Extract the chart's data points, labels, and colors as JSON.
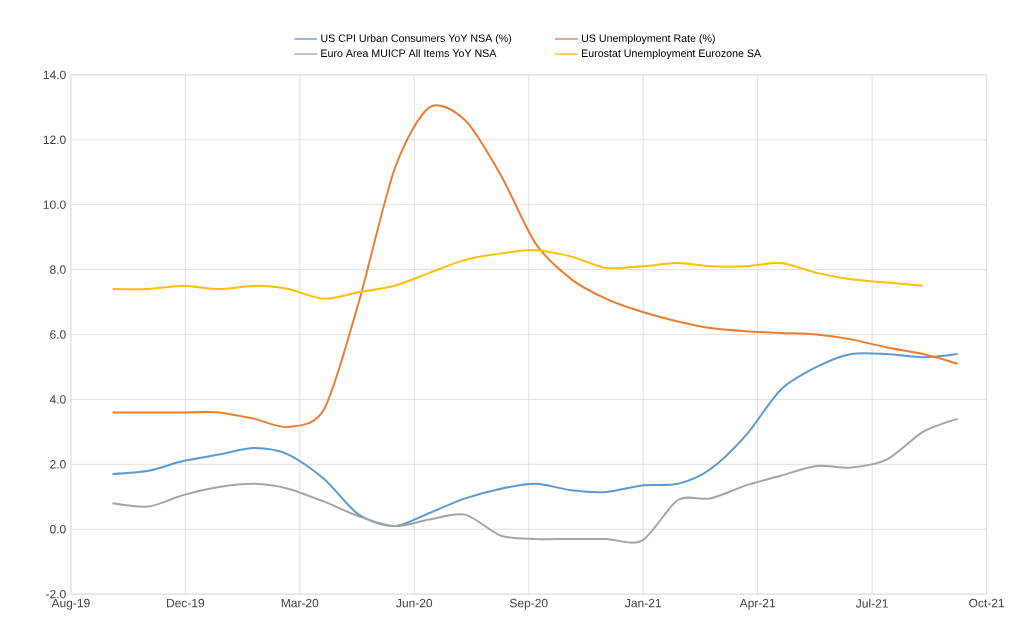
{
  "chart_data": {
    "type": "line",
    "x": [
      "2019-09-30",
      "2019-10-31",
      "2019-11-30",
      "2019-12-31",
      "2020-01-31",
      "2020-02-29",
      "2020-03-31",
      "2020-04-30",
      "2020-05-31",
      "2020-06-30",
      "2020-07-31",
      "2020-08-31",
      "2020-09-30",
      "2020-10-31",
      "2020-11-30",
      "2020-12-31",
      "2021-01-31",
      "2021-02-28",
      "2021-03-31",
      "2021-04-30",
      "2021-05-31",
      "2021-06-30",
      "2021-07-31",
      "2021-08-31",
      "2021-09-30"
    ],
    "series": [
      {
        "name": "US CPI Urban Consumers YoY NSA (%)",
        "color": "#5b9bd5",
        "values": [
          1.7,
          1.8,
          2.1,
          2.3,
          2.5,
          2.3,
          1.55,
          0.45,
          0.1,
          0.5,
          0.95,
          1.25,
          1.4,
          1.2,
          1.15,
          1.35,
          1.4,
          1.85,
          2.9,
          4.3,
          5.0,
          5.4,
          5.4,
          5.3,
          5.4
        ]
      },
      {
        "name": "US Unemployment Rate (%)",
        "color": "#ed7d31",
        "values": [
          3.6,
          3.6,
          3.6,
          3.6,
          3.4,
          3.15,
          3.7,
          7.0,
          11.1,
          13.0,
          12.6,
          10.9,
          8.8,
          7.7,
          7.1,
          6.7,
          6.4,
          6.2,
          6.1,
          6.05,
          6.0,
          5.85,
          5.6,
          5.4,
          5.1
        ]
      },
      {
        "name": "Euro Area MUICP All Items YoY NSA",
        "color": "#a5a5a5",
        "values": [
          0.8,
          0.7,
          1.05,
          1.3,
          1.4,
          1.25,
          0.85,
          0.4,
          0.1,
          0.3,
          0.45,
          -0.2,
          -0.3,
          -0.3,
          -0.3,
          -0.35,
          0.9,
          0.95,
          1.35,
          1.65,
          1.95,
          1.9,
          2.15,
          3.0,
          3.4
        ]
      },
      {
        "name": "Eurostat Unemployment Eurozone SA",
        "color": "#ffc000",
        "values": [
          7.4,
          7.4,
          7.5,
          7.4,
          7.5,
          7.4,
          7.1,
          7.3,
          7.5,
          7.9,
          8.3,
          8.5,
          8.6,
          8.4,
          8.05,
          8.1,
          8.2,
          8.1,
          8.1,
          8.2,
          7.9,
          7.7,
          7.6,
          7.5,
          null
        ]
      }
    ],
    "xlim": [
      "2019-08-25",
      "2021-10-25"
    ],
    "xticks": [
      {
        "value": "2019-08-25",
        "label": "Aug-19"
      },
      {
        "value": "2019-12-02",
        "label": "Dec-19"
      },
      {
        "value": "2020-03-10",
        "label": "Mar-20"
      },
      {
        "value": "2020-06-17",
        "label": "Jun-20"
      },
      {
        "value": "2020-09-24",
        "label": "Sep-20"
      },
      {
        "value": "2021-01-01",
        "label": "Jan-21"
      },
      {
        "value": "2021-04-10",
        "label": "Apr-21"
      },
      {
        "value": "2021-07-18",
        "label": "Jul-21"
      },
      {
        "value": "2021-10-25",
        "label": "Oct-21"
      }
    ],
    "ylim": [
      -2,
      14
    ],
    "yticks": [
      {
        "value": -2,
        "label": "-2.0"
      },
      {
        "value": 0,
        "label": "0.0"
      },
      {
        "value": 2,
        "label": "2.0"
      },
      {
        "value": 4,
        "label": "4.0"
      },
      {
        "value": 6,
        "label": "6.0"
      },
      {
        "value": 8,
        "label": "8.0"
      },
      {
        "value": 10,
        "label": "10.0"
      },
      {
        "value": 12,
        "label": "12.0"
      },
      {
        "value": 14,
        "label": "14.0"
      }
    ],
    "grid": true,
    "legend": "top"
  }
}
